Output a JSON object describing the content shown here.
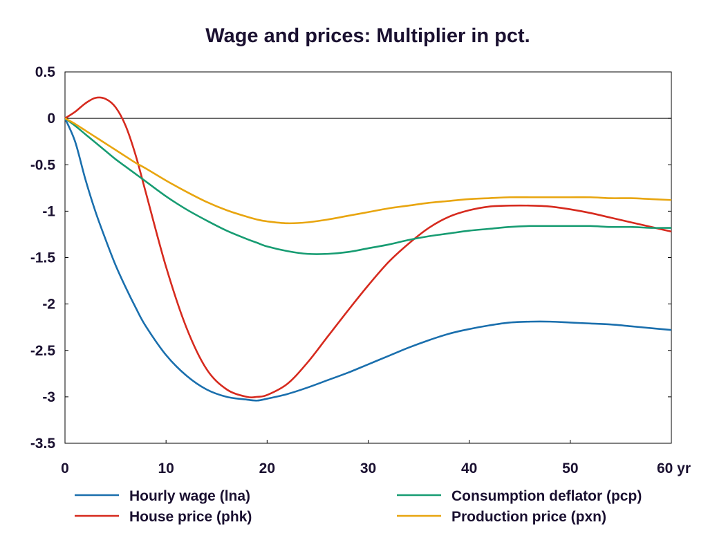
{
  "chart_data": {
    "type": "line",
    "title": "Wage and prices: Multiplier in pct.",
    "x_unit_label": "yr",
    "xlim": [
      0,
      60
    ],
    "ylim": [
      -3.5,
      0.5
    ],
    "x_ticks": [
      0,
      10,
      20,
      30,
      40,
      50,
      60
    ],
    "x_tick_labels": [
      "0",
      "10",
      "20",
      "30",
      "40",
      "50",
      "60 yr"
    ],
    "y_ticks": [
      0.5,
      0,
      -0.5,
      -1,
      -1.5,
      -2,
      -2.5,
      -3,
      -3.5
    ],
    "y_tick_labels": [
      "0.5",
      "0",
      "-0.5",
      "-1",
      "-1.5",
      "-2",
      "-2.5",
      "-3",
      "-3.5"
    ],
    "zero_line": true,
    "grid": false,
    "legend_position": "bottom",
    "x": [
      0,
      1,
      2,
      3,
      4,
      5,
      6,
      7,
      8,
      10,
      12,
      14,
      16,
      18,
      19,
      20,
      22,
      24,
      26,
      28,
      30,
      32,
      34,
      36,
      38,
      40,
      42,
      44,
      46,
      48,
      50,
      52,
      54,
      56,
      58,
      60
    ],
    "series": [
      {
        "name": "Hourly wage (lna)",
        "color": "#1a6fad",
        "values": [
          0,
          -0.25,
          -0.65,
          -1.0,
          -1.3,
          -1.58,
          -1.82,
          -2.04,
          -2.24,
          -2.55,
          -2.77,
          -2.92,
          -3.0,
          -3.03,
          -3.04,
          -3.02,
          -2.97,
          -2.9,
          -2.82,
          -2.74,
          -2.65,
          -2.56,
          -2.47,
          -2.39,
          -2.32,
          -2.27,
          -2.23,
          -2.2,
          -2.19,
          -2.19,
          -2.2,
          -2.21,
          -2.22,
          -2.24,
          -2.26,
          -2.28
        ]
      },
      {
        "name": "House price (phk)",
        "color": "#d62a1e",
        "values": [
          0,
          0.07,
          0.16,
          0.22,
          0.21,
          0.12,
          -0.08,
          -0.4,
          -0.8,
          -1.6,
          -2.25,
          -2.7,
          -2.92,
          -3.0,
          -3.0,
          -2.98,
          -2.86,
          -2.63,
          -2.35,
          -2.07,
          -1.8,
          -1.55,
          -1.35,
          -1.18,
          -1.06,
          -0.99,
          -0.95,
          -0.94,
          -0.94,
          -0.95,
          -0.98,
          -1.02,
          -1.07,
          -1.12,
          -1.17,
          -1.22
        ]
      },
      {
        "name": "Consumption deflator (pcp)",
        "color": "#179c72",
        "values": [
          0,
          -0.08,
          -0.17,
          -0.26,
          -0.35,
          -0.44,
          -0.52,
          -0.6,
          -0.68,
          -0.84,
          -0.98,
          -1.1,
          -1.21,
          -1.3,
          -1.34,
          -1.38,
          -1.43,
          -1.46,
          -1.46,
          -1.44,
          -1.4,
          -1.36,
          -1.31,
          -1.27,
          -1.24,
          -1.21,
          -1.19,
          -1.17,
          -1.16,
          -1.16,
          -1.16,
          -1.16,
          -1.17,
          -1.17,
          -1.18,
          -1.18
        ]
      },
      {
        "name": "Production price (pxn)",
        "color": "#e8a50f",
        "values": [
          0,
          -0.06,
          -0.13,
          -0.2,
          -0.27,
          -0.34,
          -0.41,
          -0.48,
          -0.54,
          -0.67,
          -0.79,
          -0.9,
          -0.99,
          -1.06,
          -1.09,
          -1.11,
          -1.13,
          -1.12,
          -1.09,
          -1.05,
          -1.01,
          -0.97,
          -0.94,
          -0.91,
          -0.89,
          -0.87,
          -0.86,
          -0.85,
          -0.85,
          -0.85,
          -0.85,
          -0.85,
          -0.86,
          -0.86,
          -0.87,
          -0.88
        ]
      }
    ]
  }
}
